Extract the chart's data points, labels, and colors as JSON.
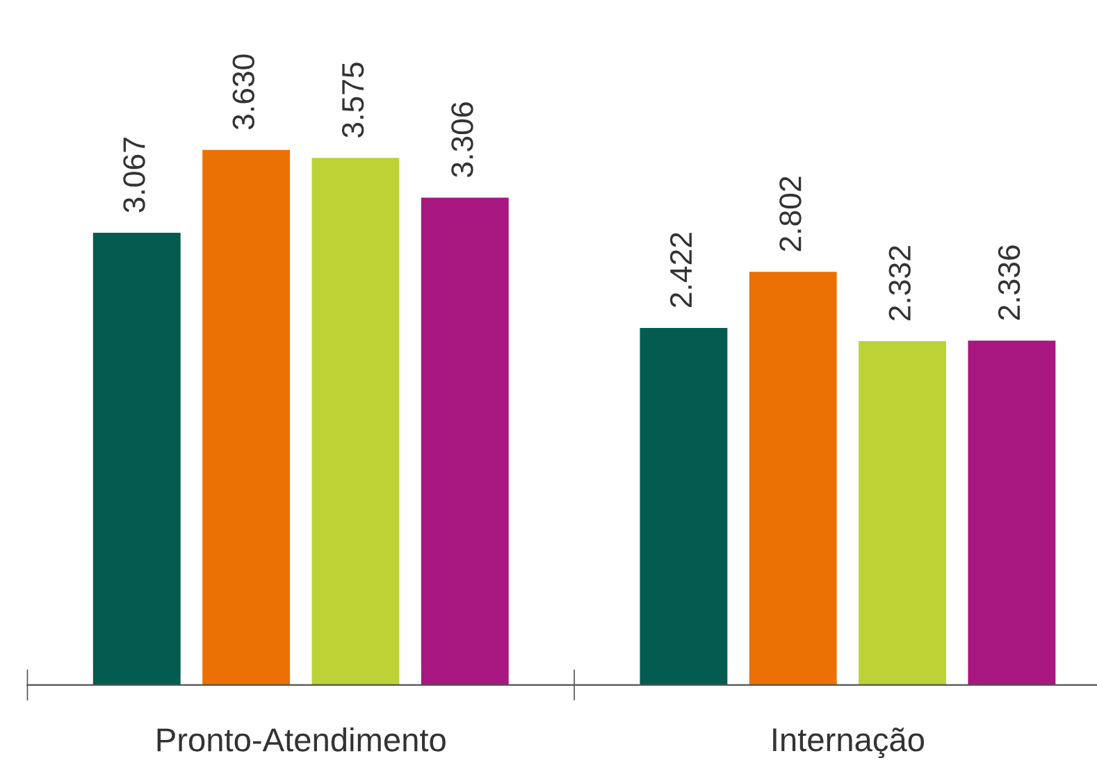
{
  "chart_data": {
    "type": "bar",
    "categories": [
      "Pronto-Atendimento",
      "Internação"
    ],
    "series": [
      {
        "color": "#045c50",
        "values": [
          3067,
          2422
        ],
        "value_labels": [
          "3.067",
          "2.422"
        ]
      },
      {
        "color": "#ec7105",
        "values": [
          3630,
          2802
        ],
        "value_labels": [
          "3.630",
          "2.802"
        ]
      },
      {
        "color": "#bcd235",
        "values": [
          3575,
          2332
        ],
        "value_labels": [
          "3.575",
          "2.332"
        ]
      },
      {
        "color": "#a8177f",
        "values": [
          3306,
          2336
        ],
        "value_labels": [
          "3.306",
          "2.336"
        ]
      }
    ],
    "grid": false,
    "legend": false,
    "tick_labels": "x"
  }
}
